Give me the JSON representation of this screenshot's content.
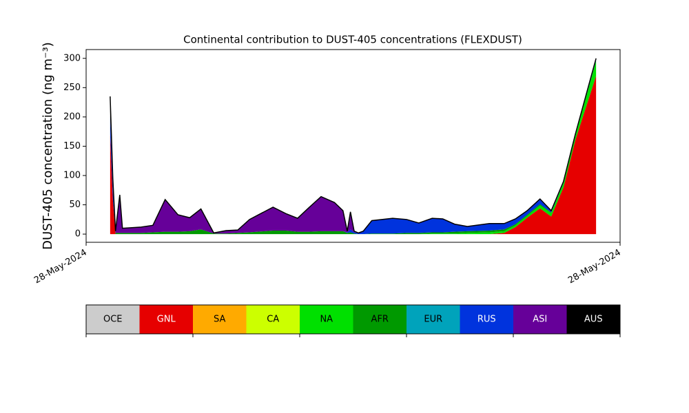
{
  "chart_data": {
    "type": "stacked_area",
    "title": "Continental contribution to DUST-405 concentrations (FLEXDUST)",
    "y_label": "DUST-405 concentration (ng m⁻³)",
    "x": [
      4.5,
      5.0,
      5.5,
      6.3,
      6.8,
      10.3,
      12.5,
      14.8,
      17.2,
      19.4,
      21.5,
      23.9,
      26.2,
      28.4,
      30.6,
      35.0,
      37.4,
      39.6,
      41.7,
      44.0,
      46.5,
      48.1,
      48.9,
      49.5,
      50.2,
      51.0,
      51.9,
      53.5,
      57.4,
      60.0,
      62.3,
      64.8,
      66.8,
      69.0,
      71.4,
      75.5,
      78.3,
      80.4,
      82.6,
      85.0,
      87.1,
      89.4,
      91.6,
      95.5
    ],
    "xlim": [
      0,
      100
    ],
    "xticks": [
      {
        "value": 0,
        "label": "28-May-2024"
      },
      {
        "value": 100,
        "label": "28-May-2024"
      }
    ],
    "ylim": [
      -14,
      315
    ],
    "yticks": [
      0,
      50,
      100,
      150,
      200,
      250,
      300
    ],
    "series": [
      {
        "name": "OCE",
        "color": "#cccccc",
        "values": [
          0,
          0,
          0,
          0,
          0,
          0,
          0,
          0,
          0,
          0,
          0,
          0,
          0,
          0,
          0,
          0,
          0,
          0,
          0,
          0,
          0,
          0,
          0,
          0,
          0,
          0,
          0,
          0,
          0,
          0,
          0,
          0,
          0,
          0,
          0,
          0,
          0,
          0,
          0,
          0,
          0,
          0,
          0,
          0
        ]
      },
      {
        "name": "GNL",
        "color": "#e60000",
        "values": [
          170,
          60,
          0,
          0,
          0,
          0,
          0,
          0,
          0,
          0,
          0,
          0,
          0,
          0,
          0,
          0,
          0,
          0,
          0,
          0,
          0,
          0,
          0,
          0,
          0,
          0,
          0,
          0,
          0,
          0,
          0,
          0,
          0,
          0,
          0,
          0,
          2,
          12,
          28,
          44,
          30,
          80,
          160,
          270
        ]
      },
      {
        "name": "SA",
        "color": "#ffaa00",
        "values": [
          0,
          0,
          0,
          0,
          0,
          0,
          0,
          0,
          0,
          0,
          0,
          0,
          0,
          0,
          0,
          0,
          0,
          0,
          0,
          0,
          0,
          0,
          0,
          0,
          0,
          0,
          0,
          0,
          0,
          0,
          0,
          0,
          0,
          0,
          0,
          0,
          0,
          0,
          0,
          0,
          0,
          0,
          0,
          0
        ]
      },
      {
        "name": "CA",
        "color": "#ccff00",
        "values": [
          0,
          0,
          0,
          0,
          0,
          0,
          0,
          0,
          0,
          0,
          0,
          0,
          0,
          0,
          0,
          0,
          0,
          0,
          0,
          0,
          0,
          0,
          0,
          0,
          0,
          0,
          0,
          0,
          0,
          0,
          0,
          0,
          0,
          0,
          0,
          0,
          0,
          0,
          0,
          0,
          0,
          0,
          0,
          0
        ]
      },
      {
        "name": "NA",
        "color": "#00e000",
        "values": [
          0,
          0,
          0,
          0,
          0,
          0,
          0,
          0,
          0,
          0,
          0,
          0,
          0,
          0,
          0,
          0,
          0,
          0,
          0,
          0,
          0,
          0,
          0,
          0,
          0,
          0,
          0,
          0,
          0,
          0,
          0,
          1,
          1,
          1,
          2,
          3,
          3,
          3,
          3,
          5,
          6,
          7,
          8,
          25
        ]
      },
      {
        "name": "AFR",
        "color": "#009900",
        "values": [
          0,
          0,
          2,
          2,
          2,
          2,
          3,
          4,
          4,
          5,
          8,
          1,
          1,
          2,
          3,
          6,
          6,
          4,
          4,
          5,
          5,
          5,
          2,
          3,
          1,
          0,
          0,
          1,
          1,
          2,
          2,
          2,
          2,
          3,
          3,
          3,
          3,
          2,
          2,
          2,
          1,
          1,
          0,
          1
        ]
      },
      {
        "name": "EUR",
        "color": "#00a3bb",
        "values": [
          0,
          0,
          0,
          0,
          0,
          0,
          0,
          0,
          0,
          0,
          0,
          0,
          0,
          0,
          0,
          0,
          0,
          0,
          0,
          0,
          0,
          0,
          0,
          0,
          0,
          0,
          0,
          0,
          0,
          0,
          0,
          0,
          0,
          0,
          0,
          0,
          0,
          0,
          0,
          0,
          0,
          0,
          0,
          0
        ]
      },
      {
        "name": "RUS",
        "color": "#0033dd",
        "values": [
          30,
          20,
          0,
          0,
          0,
          0,
          0,
          0,
          0,
          0,
          0,
          0,
          0,
          0,
          0,
          0,
          0,
          0,
          0,
          0,
          0,
          0,
          1,
          5,
          2,
          2,
          5,
          22,
          26,
          23,
          17,
          24,
          23,
          13,
          8,
          12,
          10,
          9,
          7,
          9,
          3,
          2,
          2,
          2
        ]
      },
      {
        "name": "ASI",
        "color": "#660099",
        "values": [
          0,
          10,
          3,
          60,
          8,
          10,
          12,
          55,
          29,
          23,
          35,
          1,
          5,
          5,
          22,
          40,
          29,
          23,
          41,
          59,
          49,
          35,
          2,
          30,
          2,
          0,
          0,
          0,
          0,
          0,
          0,
          0,
          0,
          0,
          0,
          0,
          0,
          0,
          0,
          0,
          0,
          0,
          0,
          0
        ]
      },
      {
        "name": "AUS",
        "color": "#000000",
        "values": [
          35,
          5,
          0,
          5,
          0,
          0,
          0,
          0,
          0,
          0,
          0,
          0,
          0,
          0,
          0,
          0,
          0,
          0,
          0,
          0,
          0,
          0,
          0,
          0,
          0,
          0,
          0,
          0,
          0,
          0,
          0,
          0,
          0,
          0,
          0,
          0,
          0,
          0,
          0,
          0,
          0,
          0,
          0,
          2
        ]
      }
    ]
  }
}
